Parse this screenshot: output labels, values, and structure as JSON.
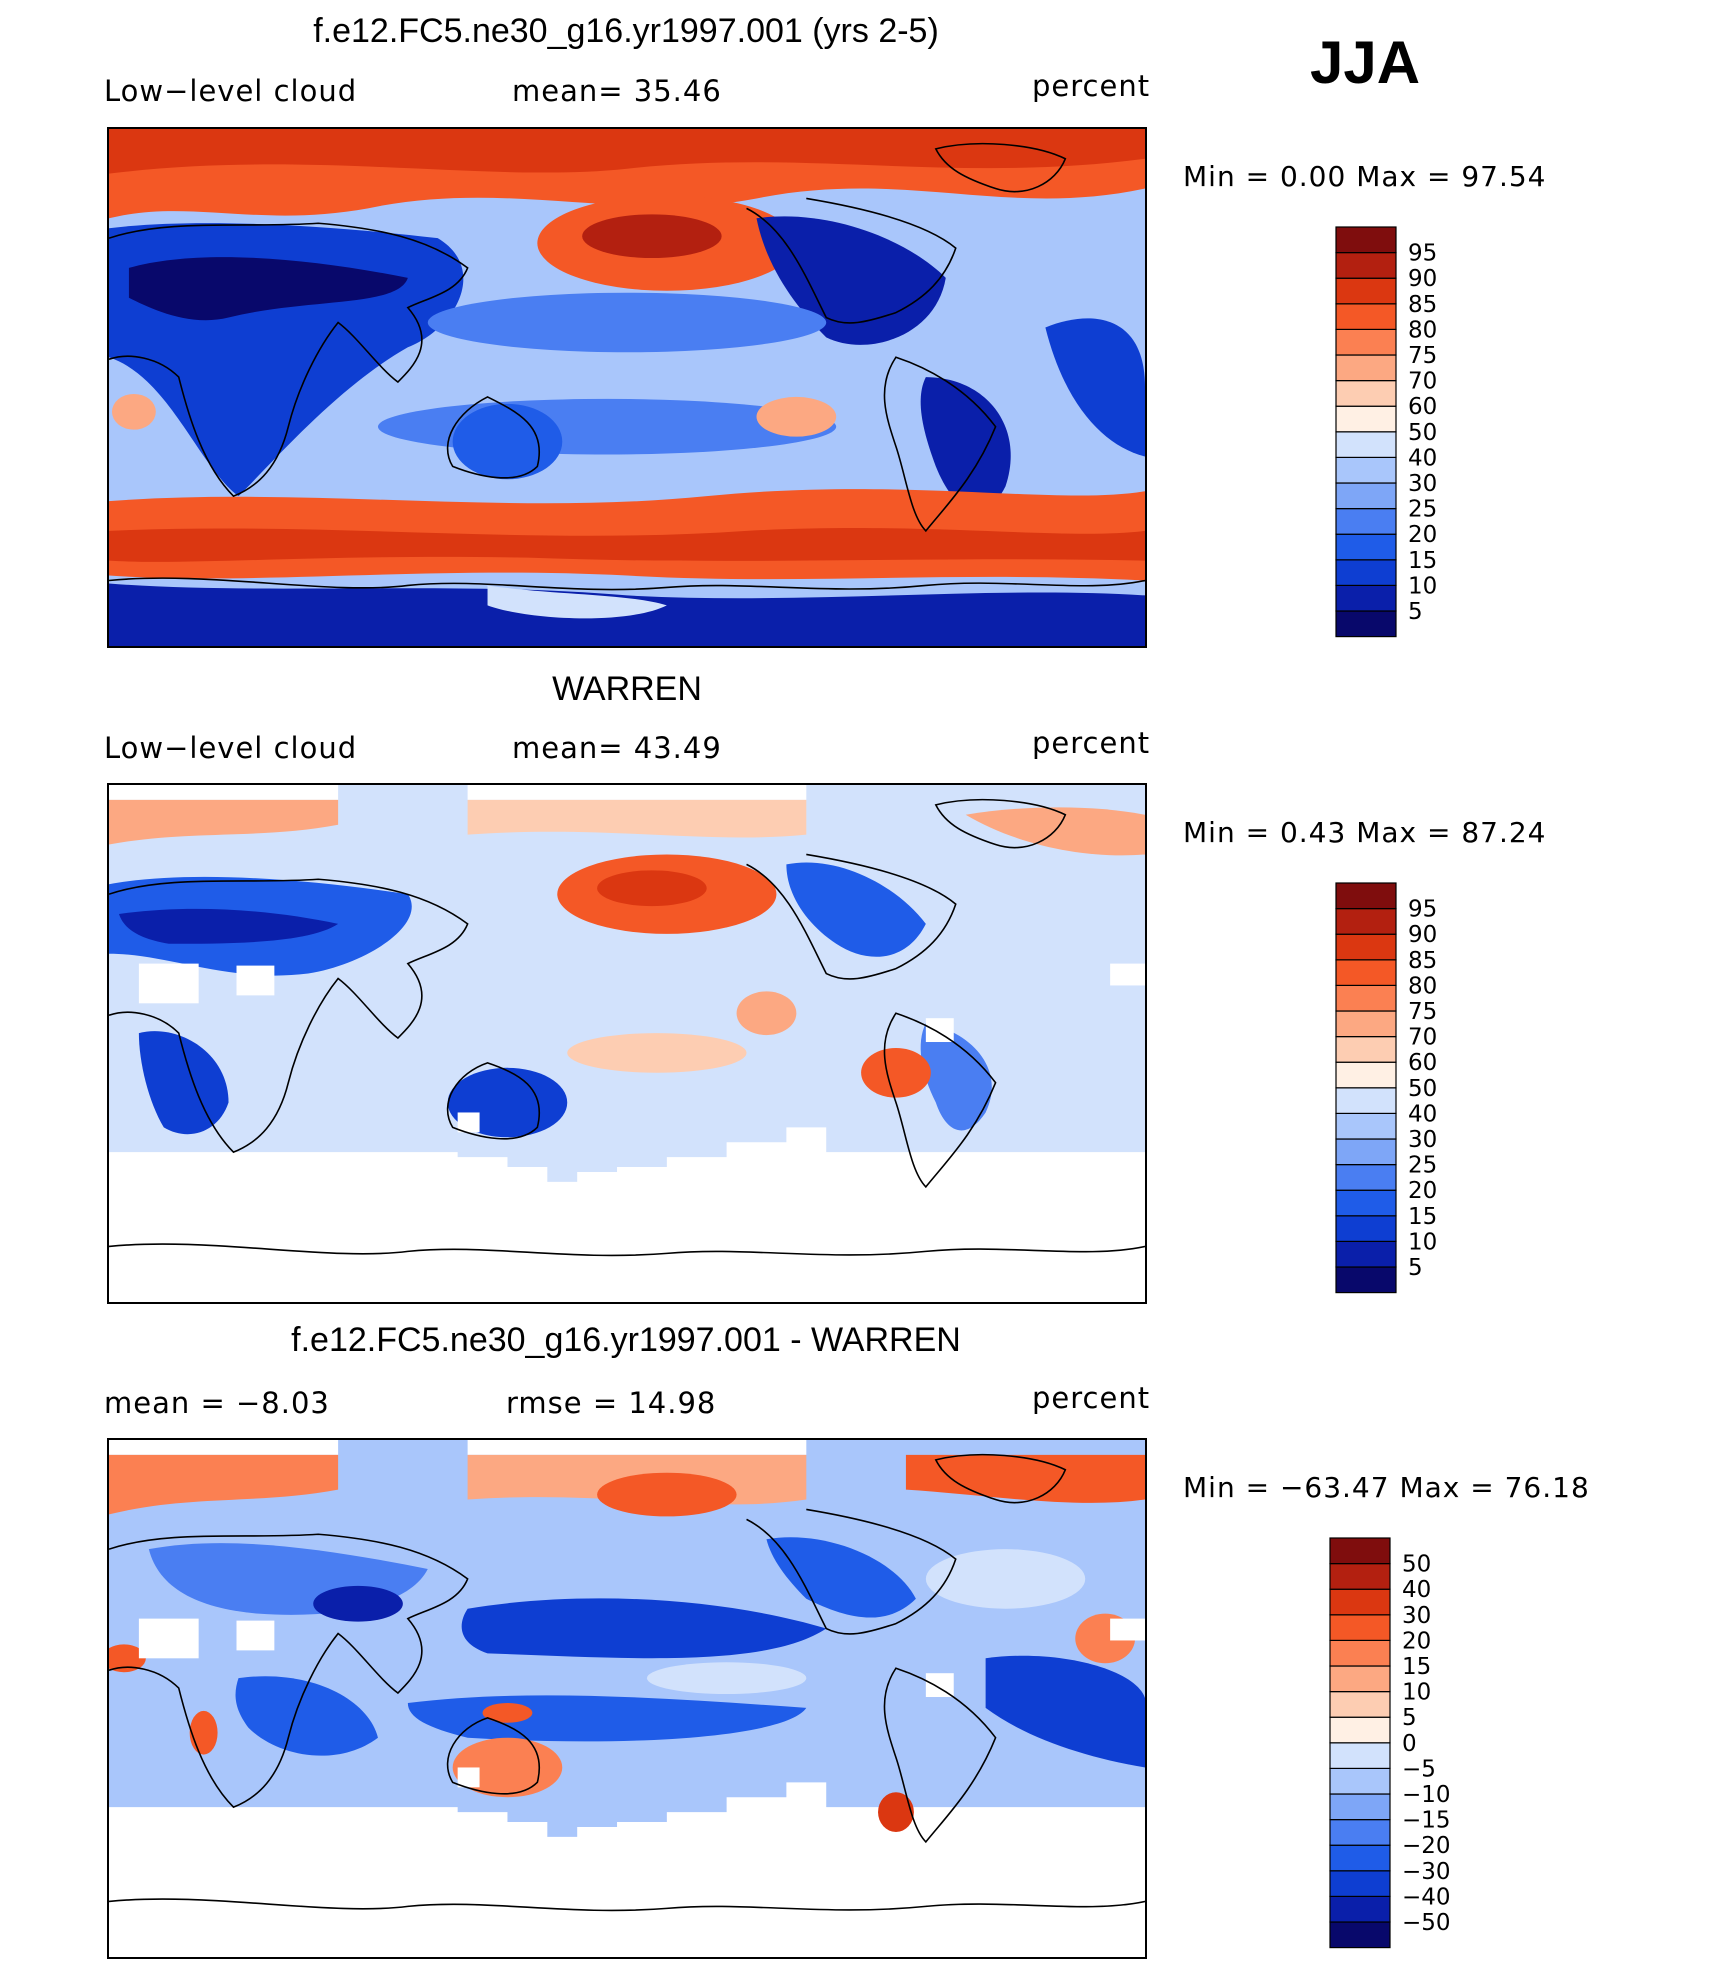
{
  "season": "JJA",
  "panels": [
    {
      "title": "f.e12.FC5.ne30_g16.yr1997.001 (yrs 2-5)",
      "left_label": "Low−level cloud",
      "center_label": "mean=   35.46",
      "units": "percent",
      "minmax": "Min  =    0.00  Max  =   97.54",
      "colorbar": {
        "colors": [
          "#08086b",
          "#0a1faa",
          "#0e3ed2",
          "#1f5ce8",
          "#4a7ef2",
          "#7ea6f7",
          "#a9c6fb",
          "#d2e2fc",
          "#fff0e4",
          "#fdcdb2",
          "#fca882",
          "#fb8052",
          "#f45826",
          "#db3711",
          "#b32010",
          "#7f0d0d"
        ],
        "labels": [
          "5",
          "10",
          "15",
          "20",
          "25",
          "30",
          "40",
          "50",
          "60",
          "70",
          "75",
          "80",
          "85",
          "90",
          "95"
        ]
      }
    },
    {
      "title": "WARREN",
      "left_label": "Low−level cloud",
      "center_label": "mean=   43.49",
      "units": "percent",
      "minmax": "Min  =    0.43  Max  =   87.24",
      "colorbar": {
        "colors": [
          "#08086b",
          "#0a1faa",
          "#0e3ed2",
          "#1f5ce8",
          "#4a7ef2",
          "#7ea6f7",
          "#a9c6fb",
          "#d2e2fc",
          "#fff0e4",
          "#fdcdb2",
          "#fca882",
          "#fb8052",
          "#f45826",
          "#db3711",
          "#b32010",
          "#7f0d0d"
        ],
        "labels": [
          "5",
          "10",
          "15",
          "20",
          "25",
          "30",
          "40",
          "50",
          "60",
          "70",
          "75",
          "80",
          "85",
          "90",
          "95"
        ]
      }
    },
    {
      "title": "f.e12.FC5.ne30_g16.yr1997.001 - WARREN",
      "left_label": "mean  =    −8.03",
      "center_label": "rmse  =    14.98",
      "units": "percent",
      "minmax": "Min  = −63.47  Max  =    76.18",
      "colorbar": {
        "colors": [
          "#08086b",
          "#0a1faa",
          "#0e3ed2",
          "#1f5ce8",
          "#4a7ef2",
          "#7ea6f7",
          "#a9c6fb",
          "#d2e2fc",
          "#fff0e4",
          "#fdcdb2",
          "#fca882",
          "#fb8052",
          "#f45826",
          "#db3711",
          "#b32010",
          "#7f0d0d"
        ],
        "labels": [
          "−50",
          "−40",
          "−30",
          "−20",
          "−15",
          "−10",
          "−5",
          "0",
          "5",
          "10",
          "15",
          "20",
          "30",
          "40",
          "50"
        ]
      }
    }
  ]
}
